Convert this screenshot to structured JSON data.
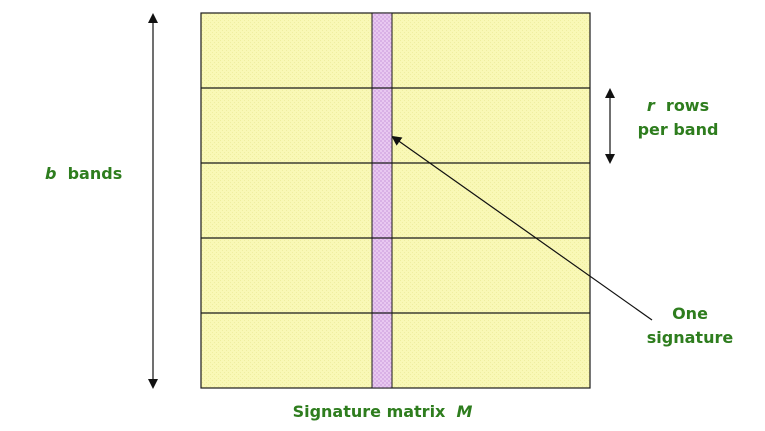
{
  "labels": {
    "bands_var": "b",
    "bands_text": "bands",
    "rows_var": "r",
    "rows_text": "rows",
    "rows_line2": "per band",
    "signature_line1": "One",
    "signature_line2": "signature",
    "caption_text": "Signature matrix",
    "caption_var": "M"
  },
  "matrix": {
    "bands": 5,
    "fill_color": "#f9f8b6",
    "column_color": "#e5c3ef",
    "line_color": "#1a1a1a"
  },
  "colors": {
    "label_green": "#2e7d1e"
  }
}
